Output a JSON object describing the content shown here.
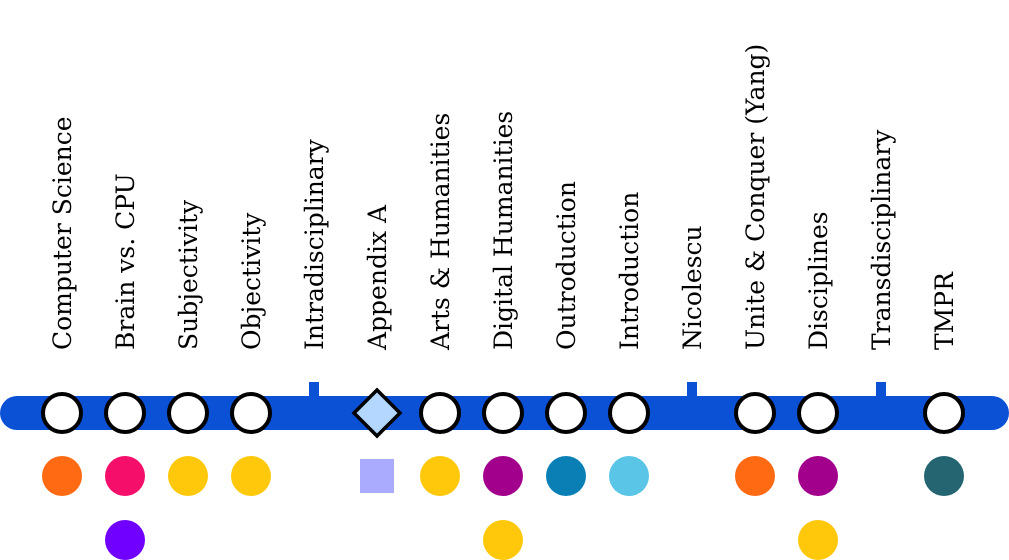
{
  "line": {
    "color": "#0b51d6"
  },
  "stops": [
    {
      "label": "Computer Science",
      "marker": "circle",
      "dots": [
        "#ff6a13"
      ]
    },
    {
      "label": "Brain vs. CPU",
      "marker": "circle",
      "dots": [
        "#f50f6a",
        "#7000ff"
      ]
    },
    {
      "label": "Subjectivity",
      "marker": "circle",
      "dots": [
        "#ffc80a"
      ]
    },
    {
      "label": "Objectivity",
      "marker": "circle",
      "dots": [
        "#ffc80a"
      ]
    },
    {
      "label": "Intradisciplinary",
      "marker": "tick",
      "dots": []
    },
    {
      "label": "Appendix A",
      "marker": "diamond",
      "dots": [],
      "squares": [
        "#aaaaff"
      ]
    },
    {
      "label": "Arts & Humanities",
      "marker": "circle",
      "dots": [
        "#ffc80a"
      ]
    },
    {
      "label": "Digital Humanities",
      "marker": "circle",
      "dots": [
        "#a2008c",
        "#ffc80a"
      ]
    },
    {
      "label": "Outroduction",
      "marker": "circle",
      "dots": [
        "#0a7fb6"
      ]
    },
    {
      "label": "Introduction",
      "marker": "circle",
      "dots": [
        "#5ac5e6"
      ]
    },
    {
      "label": "Nicolescu",
      "marker": "tick",
      "dots": []
    },
    {
      "label": "Unite & Conquer (Yang)",
      "marker": "circle",
      "dots": [
        "#ff6a13"
      ]
    },
    {
      "label": "Disciplines",
      "marker": "circle",
      "dots": [
        "#a2008c",
        "#ffc80a"
      ]
    },
    {
      "label": "Transdisciplinary",
      "marker": "tick",
      "dots": []
    },
    {
      "label": "TMPR",
      "marker": "circle",
      "dots": [
        "#256572"
      ]
    }
  ]
}
